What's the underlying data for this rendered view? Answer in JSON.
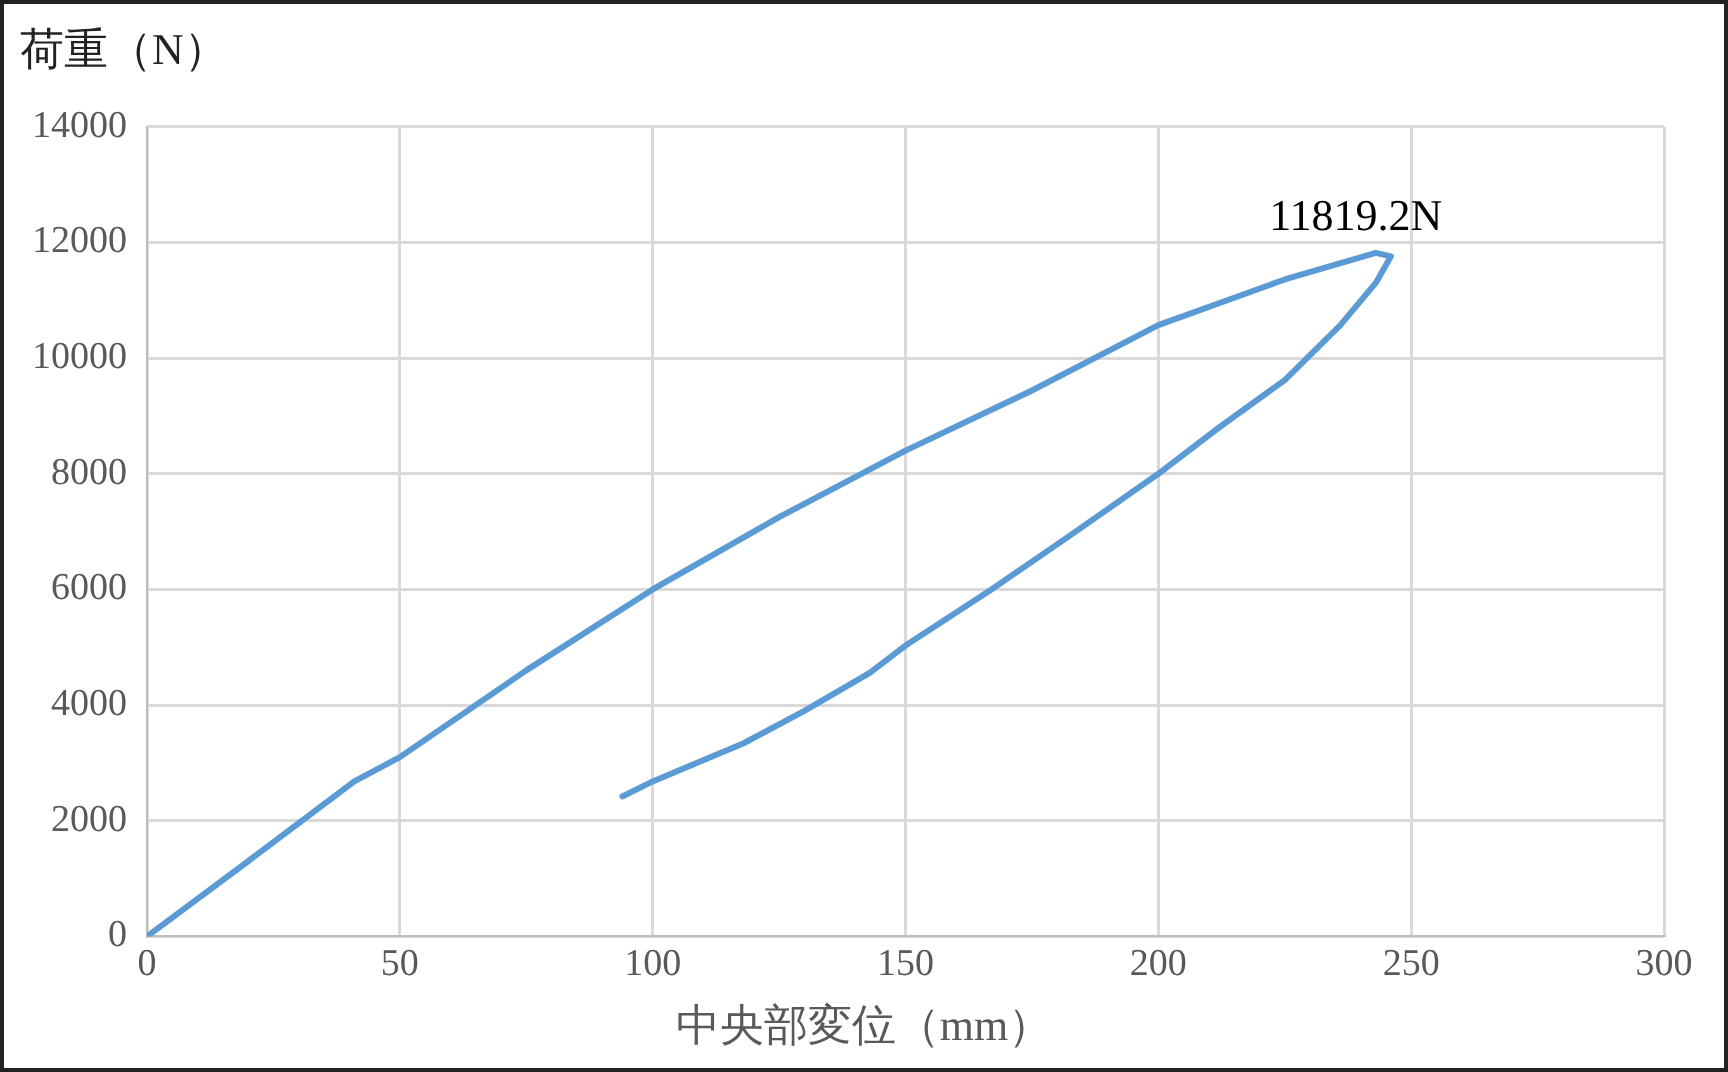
{
  "chart_data": {
    "type": "line",
    "xlabel": "中央部変位（mm）",
    "ylabel": "荷重（N）",
    "x": [
      0,
      20,
      41,
      50,
      75,
      100,
      125,
      150,
      175,
      200,
      225,
      243,
      246,
      243,
      236,
      225,
      212,
      200,
      183,
      167,
      150,
      143,
      130,
      118,
      100,
      94
    ],
    "series": [
      {
        "color": "#5b9bd5",
        "values": [
          0,
          1300,
          2680,
          3100,
          4600,
          6000,
          7250,
          8400,
          9440,
          10570,
          11360,
          11819,
          11760,
          11300,
          10570,
          9620,
          8800,
          8000,
          6960,
          6000,
          5030,
          4560,
          3900,
          3340,
          2680,
          2420
        ]
      }
    ],
    "annotations": [
      {
        "text": "11819.2N",
        "x": 243,
        "y": 11819
      }
    ],
    "xlim": [
      0,
      300
    ],
    "xticks": [
      0,
      50,
      100,
      150,
      200,
      250,
      300
    ],
    "ylim": [
      0,
      14000
    ],
    "yticks": [
      0,
      2000,
      4000,
      6000,
      8000,
      10000,
      12000,
      14000
    ],
    "grid": true,
    "marker": "none",
    "line_style": "solid"
  }
}
